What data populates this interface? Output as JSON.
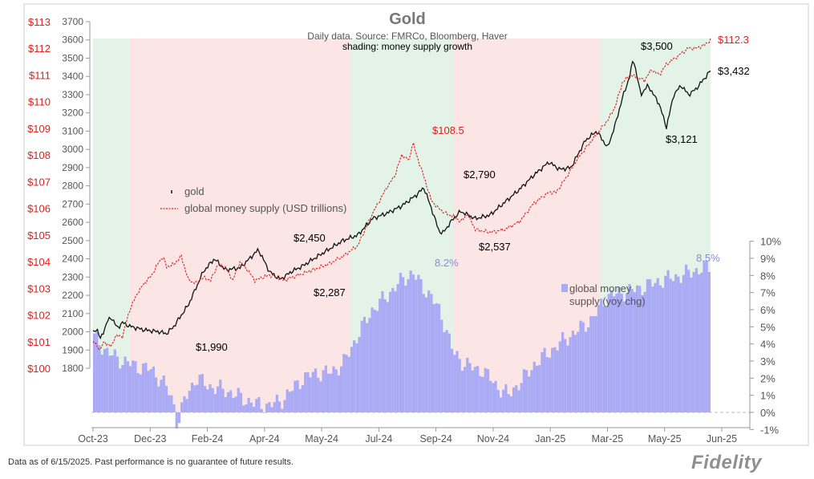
{
  "chart_data": {
    "type": "line",
    "title": "Gold",
    "subtitle": "Daily data.  Source: FMRCo, Bloomberg, Haver",
    "shading_label": "shading: money supply growth",
    "x_ticks": [
      "Oct-23",
      "Dec-23",
      "Feb-24",
      "Apr-24",
      "May-24",
      "Jul-24",
      "Sep-24",
      "Nov-24",
      "Jan-25",
      "Mar-25",
      "May-25",
      "Jun-25"
    ],
    "left_axis_gold": {
      "ticks": [
        "3700",
        "3600",
        "3500",
        "3400",
        "3300",
        "3200",
        "3100",
        "3000",
        "2900",
        "2800",
        "2700",
        "2600",
        "2500",
        "2400",
        "2300",
        "2200",
        "2100",
        "2000",
        "1900",
        "1800"
      ],
      "ylim": [
        1800,
        3700
      ]
    },
    "left_axis_money": {
      "ticks": [
        "$113",
        "$112",
        "$111",
        "$110",
        "$109",
        "$108",
        "$107",
        "$106",
        "$105",
        "$104",
        "$103",
        "$102",
        "$101",
        "$100"
      ],
      "ylim": [
        100,
        113
      ]
    },
    "right_axis_yoy": {
      "ticks": [
        "10%",
        "9%",
        "8%",
        "7%",
        "6%",
        "5%",
        "4%",
        "3%",
        "2%",
        "1%",
        "0%",
        "-1%"
      ],
      "ylim": [
        -1,
        10
      ]
    },
    "legend": [
      {
        "name": "gold",
        "color": "#111111"
      },
      {
        "name": "global money supply (USD trillions)",
        "color": "#e0201e"
      }
    ],
    "bar_legend": {
      "line1": "global money",
      "line2": "supply (yoy chg)",
      "color": "#aaaaf5"
    },
    "series": [
      {
        "name": "gold",
        "axis": "gold",
        "color": "#111111",
        "points": [
          [
            0,
            1995
          ],
          [
            0.05,
            2020
          ],
          [
            0.1,
            1960
          ],
          [
            0.2,
            2060
          ],
          [
            0.25,
            2080
          ],
          [
            0.33,
            2020
          ],
          [
            0.4,
            2050
          ],
          [
            0.5,
            2030
          ],
          [
            0.7,
            2010
          ],
          [
            0.9,
            2000
          ],
          [
            1.0,
            1990
          ],
          [
            1.1,
            2030
          ],
          [
            1.3,
            2150
          ],
          [
            1.5,
            2330
          ],
          [
            1.65,
            2400
          ],
          [
            1.8,
            2340
          ],
          [
            2.0,
            2350
          ],
          [
            2.2,
            2430
          ],
          [
            2.25,
            2450
          ],
          [
            2.4,
            2330
          ],
          [
            2.5,
            2300
          ],
          [
            2.55,
            2287
          ],
          [
            2.7,
            2330
          ],
          [
            2.85,
            2360
          ],
          [
            3.0,
            2400
          ],
          [
            3.2,
            2450
          ],
          [
            3.4,
            2500
          ],
          [
            3.6,
            2530
          ],
          [
            3.8,
            2620
          ],
          [
            4.0,
            2650
          ],
          [
            4.2,
            2690
          ],
          [
            4.4,
            2750
          ],
          [
            4.5,
            2790
          ],
          [
            4.6,
            2680
          ],
          [
            4.7,
            2560
          ],
          [
            4.75,
            2537
          ],
          [
            4.9,
            2620
          ],
          [
            5.0,
            2660
          ],
          [
            5.1,
            2640
          ],
          [
            5.2,
            2620
          ],
          [
            5.4,
            2640
          ],
          [
            5.6,
            2710
          ],
          [
            5.8,
            2780
          ],
          [
            6.0,
            2860
          ],
          [
            6.2,
            2930
          ],
          [
            6.35,
            2890
          ],
          [
            6.5,
            2900
          ],
          [
            6.7,
            3050
          ],
          [
            6.85,
            3100
          ],
          [
            7.0,
            3010
          ],
          [
            7.1,
            3130
          ],
          [
            7.2,
            3280
          ],
          [
            7.3,
            3400
          ],
          [
            7.35,
            3500
          ],
          [
            7.45,
            3300
          ],
          [
            7.55,
            3350
          ],
          [
            7.7,
            3250
          ],
          [
            7.8,
            3121
          ],
          [
            7.9,
            3300
          ],
          [
            8.0,
            3350
          ],
          [
            8.1,
            3300
          ],
          [
            8.2,
            3330
          ],
          [
            8.3,
            3380
          ],
          [
            8.4,
            3432
          ]
        ]
      },
      {
        "name": "global money supply (USD trillions)",
        "axis": "money",
        "color": "#e0201e",
        "points": [
          [
            0,
            101.0
          ],
          [
            0.1,
            100.7
          ],
          [
            0.15,
            101.0
          ],
          [
            0.25,
            100.8
          ],
          [
            0.3,
            101.2
          ],
          [
            0.4,
            101.2
          ],
          [
            0.5,
            102.2
          ],
          [
            0.6,
            102.8
          ],
          [
            0.7,
            103.2
          ],
          [
            0.8,
            103.5
          ],
          [
            0.9,
            104.0
          ],
          [
            0.95,
            104.2
          ],
          [
            1.0,
            103.8
          ],
          [
            1.1,
            103.9
          ],
          [
            1.2,
            104.2
          ],
          [
            1.3,
            103.3
          ],
          [
            1.4,
            103.2
          ],
          [
            1.5,
            103.4
          ],
          [
            1.6,
            103.3
          ],
          [
            1.7,
            103.9
          ],
          [
            1.8,
            103.8
          ],
          [
            1.9,
            103.3
          ],
          [
            2.0,
            104.0
          ],
          [
            2.1,
            103.7
          ],
          [
            2.2,
            103.3
          ],
          [
            2.4,
            103.5
          ],
          [
            2.6,
            103.3
          ],
          [
            2.8,
            103.5
          ],
          [
            3.0,
            103.7
          ],
          [
            3.1,
            103.8
          ],
          [
            3.2,
            103.9
          ],
          [
            3.4,
            104.2
          ],
          [
            3.6,
            104.6
          ],
          [
            3.8,
            105.8
          ],
          [
            4.0,
            106.8
          ],
          [
            4.1,
            107.2
          ],
          [
            4.2,
            108.0
          ],
          [
            4.3,
            107.8
          ],
          [
            4.35,
            108.5
          ],
          [
            4.4,
            108.0
          ],
          [
            4.5,
            107.2
          ],
          [
            4.6,
            106.3
          ],
          [
            4.7,
            106.0
          ],
          [
            4.8,
            105.8
          ],
          [
            4.9,
            105.7
          ],
          [
            5.0,
            105.5
          ],
          [
            5.1,
            105.8
          ],
          [
            5.2,
            105.2
          ],
          [
            5.4,
            105.1
          ],
          [
            5.6,
            105.2
          ],
          [
            5.8,
            105.5
          ],
          [
            6.0,
            106.2
          ],
          [
            6.2,
            106.6
          ],
          [
            6.3,
            106.6
          ],
          [
            6.4,
            107.0
          ],
          [
            6.6,
            107.9
          ],
          [
            6.8,
            108.6
          ],
          [
            7.0,
            109.3
          ],
          [
            7.1,
            109.8
          ],
          [
            7.2,
            110.7
          ],
          [
            7.3,
            111.0
          ],
          [
            7.4,
            110.9
          ],
          [
            7.5,
            110.8
          ],
          [
            7.6,
            111.2
          ],
          [
            7.7,
            111.0
          ],
          [
            7.8,
            111.4
          ],
          [
            7.9,
            111.6
          ],
          [
            8.0,
            111.8
          ],
          [
            8.1,
            112.0
          ],
          [
            8.2,
            112.0
          ],
          [
            8.3,
            112.1
          ],
          [
            8.4,
            112.3
          ]
        ]
      },
      {
        "name": "global money supply (yoy chg)",
        "axis": "yoy",
        "type": "bar",
        "color": "#aaaaf5",
        "points": [
          [
            0,
            4.5
          ],
          [
            0.2,
            3.5
          ],
          [
            0.4,
            3.0
          ],
          [
            0.6,
            2.7
          ],
          [
            0.8,
            2.5
          ],
          [
            1.0,
            1.5
          ],
          [
            1.1,
            0.5
          ],
          [
            1.15,
            -0.8
          ],
          [
            1.25,
            0.8
          ],
          [
            1.4,
            2.0
          ],
          [
            1.6,
            1.5
          ],
          [
            1.8,
            1.3
          ],
          [
            2.0,
            0.9
          ],
          [
            2.2,
            0.5
          ],
          [
            2.4,
            0.4
          ],
          [
            2.6,
            0.8
          ],
          [
            2.8,
            1.8
          ],
          [
            3.0,
            2.3
          ],
          [
            3.2,
            2.3
          ],
          [
            3.4,
            2.8
          ],
          [
            3.6,
            4.5
          ],
          [
            3.8,
            6.0
          ],
          [
            4.0,
            6.8
          ],
          [
            4.1,
            7.3
          ],
          [
            4.2,
            7.7
          ],
          [
            4.3,
            8.0
          ],
          [
            4.35,
            8.2
          ],
          [
            4.45,
            7.5
          ],
          [
            4.6,
            6.8
          ],
          [
            4.7,
            6.0
          ],
          [
            4.8,
            5.0
          ],
          [
            4.9,
            3.5
          ],
          [
            5.0,
            3.0
          ],
          [
            5.1,
            2.8
          ],
          [
            5.2,
            2.5
          ],
          [
            5.3,
            2.5
          ],
          [
            5.4,
            2.0
          ],
          [
            5.5,
            1.5
          ],
          [
            5.6,
            1.2
          ],
          [
            5.65,
            1.0
          ],
          [
            5.75,
            1.5
          ],
          [
            5.9,
            2.2
          ],
          [
            6.0,
            2.8
          ],
          [
            6.2,
            3.5
          ],
          [
            6.4,
            4.2
          ],
          [
            6.6,
            4.8
          ],
          [
            6.8,
            5.5
          ],
          [
            6.9,
            6.2
          ],
          [
            7.0,
            6.8
          ],
          [
            7.2,
            7.0
          ],
          [
            7.4,
            7.2
          ],
          [
            7.6,
            7.5
          ],
          [
            7.8,
            7.8
          ],
          [
            8.0,
            8.0
          ],
          [
            8.2,
            8.3
          ],
          [
            8.4,
            8.5
          ]
        ]
      }
    ],
    "annotations": [
      {
        "text": "$1,990",
        "color": "#000000"
      },
      {
        "text": "$2,450",
        "color": "#000000"
      },
      {
        "text": "$2,287",
        "color": "#000000"
      },
      {
        "text": "$2,790",
        "color": "#000000"
      },
      {
        "text": "$2,537",
        "color": "#000000"
      },
      {
        "text": "$3,500",
        "color": "#000000"
      },
      {
        "text": "$3,121",
        "color": "#000000"
      },
      {
        "text": "$3,432",
        "color": "#000000"
      },
      {
        "text": "$108.5",
        "color": "#e0201e"
      },
      {
        "text": "$112.3",
        "color": "#e0201e"
      },
      {
        "text": "8.2%",
        "color": "#8a8ae0"
      },
      {
        "text": "8.5%",
        "color": "#8a8ae0"
      }
    ],
    "shading": [
      {
        "from": 0.0,
        "to": 0.5,
        "color": "#d9efe0"
      },
      {
        "from": 0.5,
        "to": 3.5,
        "color": "#fadcdc"
      },
      {
        "from": 3.5,
        "to": 4.9,
        "color": "#d9efe0"
      },
      {
        "from": 4.9,
        "to": 6.9,
        "color": "#fadcdc"
      },
      {
        "from": 6.9,
        "to": 8.4,
        "color": "#d9efe0"
      }
    ],
    "grid": false
  },
  "footer": {
    "note": "Data as of 6/15/2025. Past performance is no guarantee of future results.",
    "brand": "Fidelity"
  }
}
